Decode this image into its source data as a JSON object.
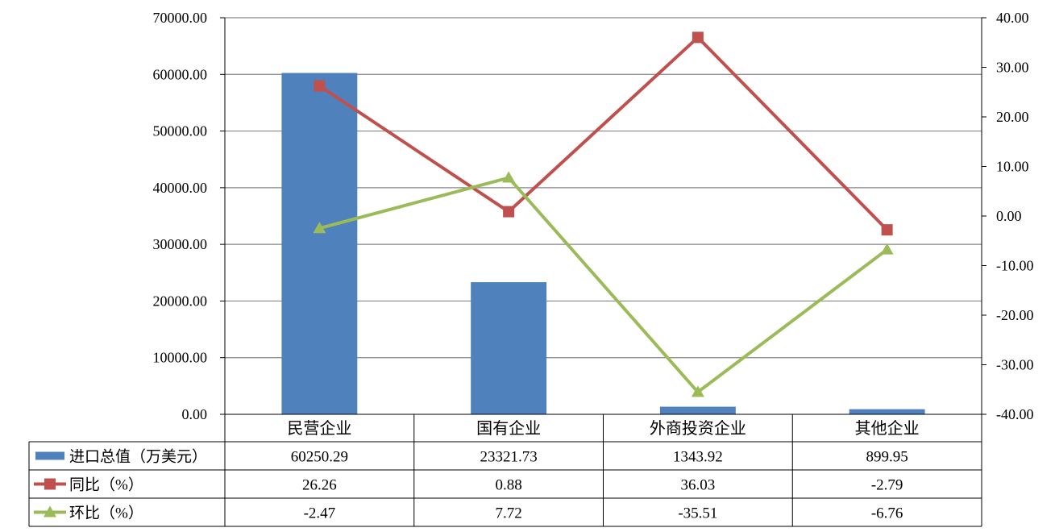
{
  "colors": {
    "bar": "#4F81BD",
    "yoy": "#C0504D",
    "mom": "#9BBB59",
    "grid": "#868686",
    "axis": "#000000"
  },
  "chart_data": {
    "type": "bar",
    "categories": [
      "民营企业",
      "国有企业",
      "外商投资企业",
      "其他企业"
    ],
    "series": [
      {
        "name": "进口总值（万美元）",
        "type": "bar",
        "axis": "left",
        "marker": "",
        "color": "#4F81BD",
        "values": [
          60250.29,
          23321.73,
          1343.92,
          899.95
        ],
        "labels": [
          "60250.29",
          "23321.73",
          "1343.92",
          "899.95"
        ]
      },
      {
        "name": "同比（%）",
        "type": "line",
        "axis": "right",
        "marker": "square",
        "color": "#C0504D",
        "values": [
          26.26,
          0.88,
          36.03,
          -2.79
        ],
        "labels": [
          "26.26",
          "0.88",
          "36.03",
          "-2.79"
        ]
      },
      {
        "name": "环比（%）",
        "type": "line",
        "axis": "right",
        "marker": "triangle",
        "color": "#9BBB59",
        "values": [
          -2.47,
          7.72,
          -35.51,
          -6.76
        ],
        "labels": [
          "-2.47",
          "7.72",
          "-35.51",
          "-6.76"
        ]
      }
    ],
    "y_left": {
      "ylim": [
        0,
        70000
      ],
      "ticks": [
        "0.00",
        "10000.00",
        "20000.00",
        "30000.00",
        "40000.00",
        "50000.00",
        "60000.00",
        "70000.00"
      ]
    },
    "y_right": {
      "ylim": [
        -40,
        40
      ],
      "ticks": [
        "-40.00",
        "-30.00",
        "-20.00",
        "-10.00",
        "0.00",
        "10.00",
        "20.00",
        "30.00",
        "40.00"
      ]
    },
    "grid": true,
    "legend": "data-table"
  }
}
